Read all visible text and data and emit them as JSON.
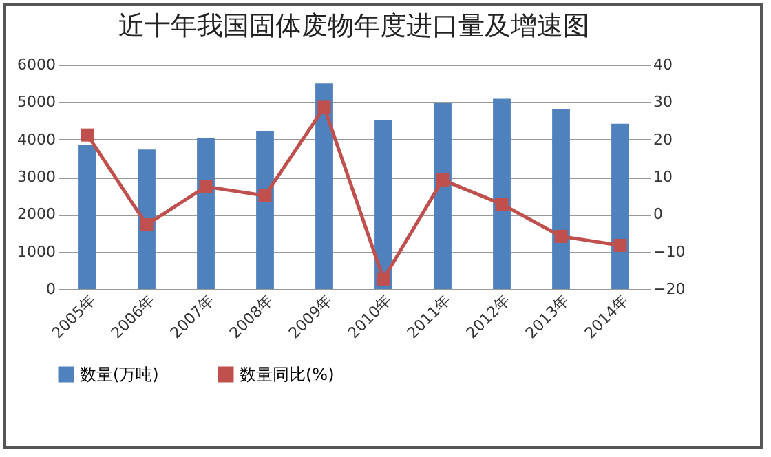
{
  "chart_data": {
    "type": "bar",
    "title": "近十年我国固体废物年度进口量及增速图",
    "categories": [
      "2005年",
      "2006年",
      "2007年",
      "2008年",
      "2009年",
      "2010年",
      "2011年",
      "2012年",
      "2013年",
      "2014年"
    ],
    "series": [
      {
        "name": "数量(万吨)",
        "color": "#4f81bd",
        "values": [
          3850,
          3730,
          4030,
          4230,
          5500,
          4510,
          4970,
          5090,
          4810,
          4420
        ]
      },
      {
        "name": "数量同比(%)",
        "type": "line",
        "axis": "y2",
        "color": "#c0504d",
        "values": [
          21.2,
          -2.8,
          7.4,
          5.0,
          28.6,
          -17.3,
          9.2,
          2.7,
          -5.9,
          -8.3
        ]
      }
    ],
    "ylim": [
      0,
      6000
    ],
    "yticks": [
      0,
      1000,
      2000,
      3000,
      4000,
      5000,
      6000
    ],
    "y2lim": [
      -20,
      40
    ],
    "y2ticks": [
      -20,
      -10,
      0,
      10,
      20,
      30,
      40
    ],
    "grid": "y",
    "legend": "bottom",
    "marker": "square"
  }
}
